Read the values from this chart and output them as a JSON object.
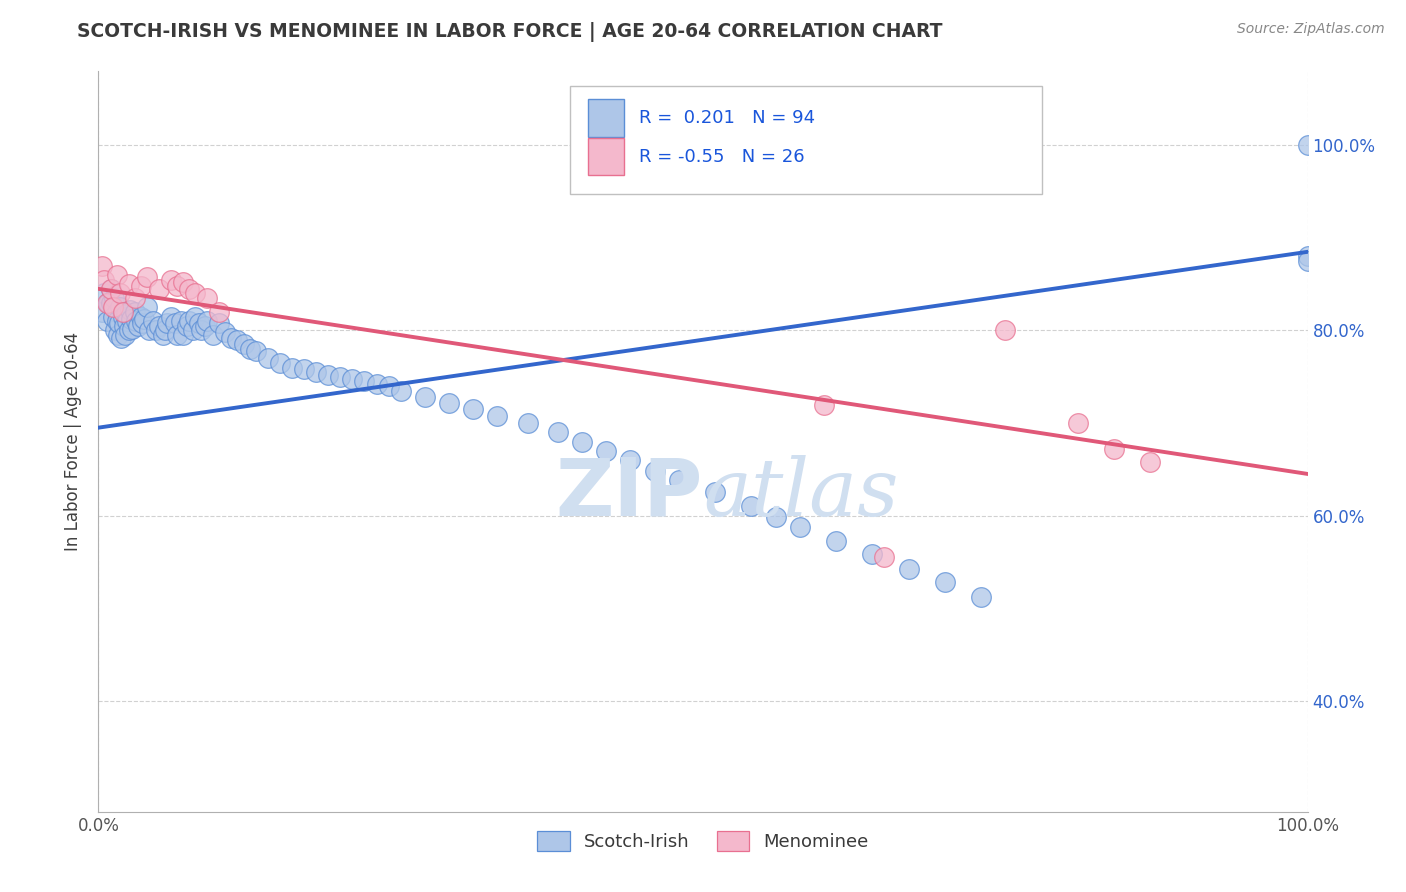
{
  "title": "SCOTCH-IRISH VS MENOMINEE IN LABOR FORCE | AGE 20-64 CORRELATION CHART",
  "source_text": "Source: ZipAtlas.com",
  "ylabel": "In Labor Force | Age 20-64",
  "xlim": [
    0.0,
    1.0
  ],
  "ylim": [
    0.28,
    1.08
  ],
  "x_tick_labels": [
    "0.0%",
    "100.0%"
  ],
  "x_tick_positions": [
    0.0,
    1.0
  ],
  "y_tick_labels_right": [
    "100.0%",
    "80.0%",
    "60.0%",
    "40.0%"
  ],
  "y_tick_positions_right": [
    1.0,
    0.8,
    0.6,
    0.4
  ],
  "blue_R": 0.201,
  "blue_N": 94,
  "pink_R": -0.55,
  "pink_N": 26,
  "blue_color": "#aec6e8",
  "pink_color": "#f4b8cc",
  "blue_edge_color": "#5b8ed6",
  "pink_edge_color": "#e87090",
  "blue_line_color": "#3366cc",
  "pink_line_color": "#e05878",
  "title_color": "#3a3a3a",
  "legend_text_color": "#1a56db",
  "watermark_color": "#d0dff0",
  "background_color": "#ffffff",
  "grid_color": "#cccccc",
  "blue_trend_y_start": 0.695,
  "blue_trend_y_end": 0.885,
  "pink_trend_y_start": 0.845,
  "pink_trend_y_end": 0.645,
  "blue_scatter_x": [
    0.003,
    0.005,
    0.007,
    0.008,
    0.01,
    0.01,
    0.012,
    0.013,
    0.014,
    0.015,
    0.015,
    0.016,
    0.017,
    0.018,
    0.019,
    0.02,
    0.021,
    0.022,
    0.023,
    0.024,
    0.025,
    0.026,
    0.027,
    0.028,
    0.03,
    0.031,
    0.033,
    0.035,
    0.036,
    0.038,
    0.04,
    0.042,
    0.045,
    0.048,
    0.05,
    0.053,
    0.055,
    0.057,
    0.06,
    0.063,
    0.065,
    0.068,
    0.07,
    0.073,
    0.075,
    0.078,
    0.08,
    0.083,
    0.085,
    0.088,
    0.09,
    0.095,
    0.1,
    0.105,
    0.11,
    0.115,
    0.12,
    0.125,
    0.13,
    0.14,
    0.15,
    0.16,
    0.17,
    0.18,
    0.19,
    0.2,
    0.21,
    0.22,
    0.23,
    0.24,
    0.25,
    0.27,
    0.29,
    0.31,
    0.33,
    0.355,
    0.38,
    0.4,
    0.42,
    0.44,
    0.46,
    0.48,
    0.51,
    0.54,
    0.56,
    0.58,
    0.61,
    0.64,
    0.67,
    0.7,
    0.73,
    1.0,
    1.0,
    1.0
  ],
  "blue_scatter_y": [
    0.82,
    0.84,
    0.81,
    0.83,
    0.845,
    0.83,
    0.815,
    0.835,
    0.8,
    0.82,
    0.81,
    0.795,
    0.808,
    0.825,
    0.792,
    0.815,
    0.805,
    0.795,
    0.818,
    0.81,
    0.8,
    0.822,
    0.812,
    0.802,
    0.82,
    0.81,
    0.805,
    0.815,
    0.808,
    0.812,
    0.825,
    0.8,
    0.81,
    0.8,
    0.805,
    0.795,
    0.8,
    0.808,
    0.815,
    0.808,
    0.795,
    0.81,
    0.795,
    0.805,
    0.81,
    0.8,
    0.815,
    0.808,
    0.8,
    0.805,
    0.81,
    0.795,
    0.808,
    0.798,
    0.792,
    0.79,
    0.785,
    0.78,
    0.778,
    0.77,
    0.765,
    0.76,
    0.758,
    0.755,
    0.752,
    0.75,
    0.748,
    0.745,
    0.742,
    0.74,
    0.735,
    0.728,
    0.722,
    0.715,
    0.708,
    0.7,
    0.69,
    0.68,
    0.67,
    0.66,
    0.648,
    0.638,
    0.625,
    0.61,
    0.598,
    0.588,
    0.572,
    0.558,
    0.542,
    0.528,
    0.512,
    0.88,
    0.875,
    1.0
  ],
  "pink_scatter_x": [
    0.003,
    0.005,
    0.007,
    0.01,
    0.012,
    0.015,
    0.018,
    0.02,
    0.025,
    0.03,
    0.035,
    0.04,
    0.05,
    0.06,
    0.065,
    0.07,
    0.075,
    0.08,
    0.09,
    0.1,
    0.6,
    0.65,
    0.75,
    0.81,
    0.84,
    0.87
  ],
  "pink_scatter_y": [
    0.87,
    0.855,
    0.83,
    0.845,
    0.825,
    0.86,
    0.84,
    0.82,
    0.85,
    0.835,
    0.848,
    0.858,
    0.845,
    0.855,
    0.848,
    0.852,
    0.845,
    0.84,
    0.835,
    0.82,
    0.72,
    0.555,
    0.8,
    0.7,
    0.672,
    0.658
  ]
}
